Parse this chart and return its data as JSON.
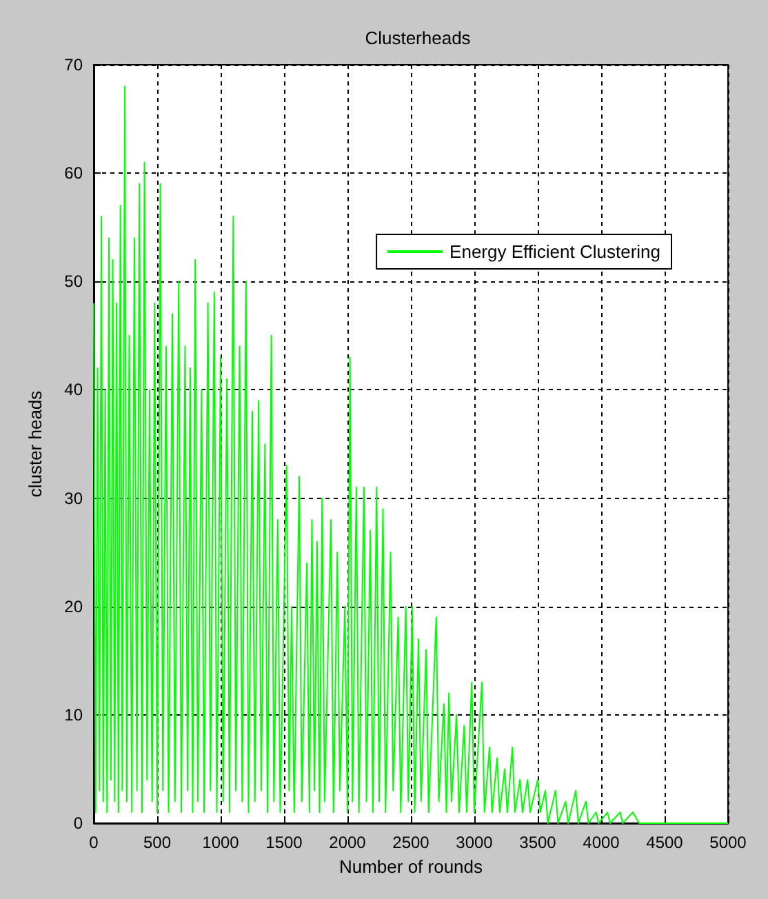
{
  "chart_data": {
    "type": "line",
    "title": "Clusterheads",
    "xlabel": "Number of rounds",
    "ylabel": "cluster heads",
    "xlim": [
      0,
      5000
    ],
    "xticks": [
      0,
      500,
      1000,
      1500,
      2000,
      2500,
      3000,
      3500,
      4000,
      4500,
      5000
    ],
    "ylim": [
      0,
      70
    ],
    "yticks": [
      0,
      10,
      20,
      30,
      40,
      50,
      60,
      70
    ],
    "grid": true,
    "legend": "top right",
    "marker": "none",
    "line_style": "solid",
    "series": [
      {
        "name": "Energy Efficient Clustering",
        "color": "#00ff00",
        "x": [
          0,
          15,
          30,
          45,
          60,
          75,
          90,
          105,
          120,
          135,
          150,
          165,
          180,
          195,
          210,
          225,
          245,
          260,
          280,
          300,
          320,
          340,
          360,
          380,
          400,
          420,
          440,
          460,
          480,
          500,
          525,
          545,
          570,
          590,
          620,
          640,
          670,
          690,
          720,
          740,
          760,
          780,
          800,
          820,
          850,
          870,
          900,
          920,
          950,
          970,
          1000,
          1020,
          1050,
          1070,
          1100,
          1120,
          1150,
          1170,
          1200,
          1220,
          1250,
          1270,
          1300,
          1320,
          1350,
          1370,
          1400,
          1420,
          1450,
          1470,
          1520,
          1540,
          1560,
          1580,
          1620,
          1640,
          1680,
          1700,
          1720,
          1740,
          1760,
          1780,
          1800,
          1820,
          1870,
          1890,
          1920,
          1940,
          1980,
          2000,
          2020,
          2040,
          2070,
          2090,
          2130,
          2150,
          2180,
          2200,
          2230,
          2250,
          2280,
          2300,
          2340,
          2360,
          2400,
          2420,
          2460,
          2480,
          2510,
          2530,
          2560,
          2580,
          2620,
          2640,
          2700,
          2720,
          2760,
          2780,
          2800,
          2820,
          2860,
          2880,
          2920,
          2940,
          2980,
          3000,
          3060,
          3080,
          3120,
          3140,
          3180,
          3200,
          3240,
          3260,
          3300,
          3320,
          3360,
          3380,
          3420,
          3440,
          3500,
          3520,
          3560,
          3580,
          3640,
          3660,
          3720,
          3740,
          3800,
          3820,
          3880,
          3900,
          3960,
          3980,
          4050,
          4070,
          4150,
          4170,
          4250,
          4300,
          5000
        ],
        "values": [
          48,
          1,
          42,
          3,
          56,
          2,
          40,
          1,
          54,
          4,
          52,
          2,
          48,
          1,
          57,
          3,
          68,
          2,
          45,
          1,
          54,
          3,
          59,
          1,
          61,
          4,
          40,
          2,
          48,
          1,
          59,
          3,
          44,
          1,
          47,
          2,
          50,
          1,
          44,
          3,
          42,
          1,
          52,
          2,
          40,
          1,
          48,
          3,
          49,
          1,
          43,
          2,
          41,
          1,
          56,
          3,
          44,
          2,
          50,
          1,
          38,
          2,
          39,
          3,
          35,
          1,
          45,
          2,
          28,
          1,
          33,
          3,
          20,
          1,
          32,
          2,
          24,
          1,
          28,
          3,
          26,
          1,
          30,
          2,
          28,
          1,
          25,
          3,
          20,
          1,
          43,
          2,
          31,
          1,
          31,
          2,
          27,
          1,
          31,
          2,
          29,
          1,
          25,
          3,
          19,
          1,
          20,
          2,
          20,
          1,
          17,
          2,
          16,
          1,
          19,
          2,
          11,
          1,
          12,
          2,
          10,
          1,
          9,
          1,
          13,
          1,
          13,
          1,
          7,
          1,
          6,
          1,
          5,
          1,
          7,
          1,
          4,
          1,
          4,
          1,
          4,
          1,
          3,
          0,
          3,
          0,
          2,
          0,
          3,
          0,
          2,
          0,
          1,
          0,
          1,
          0,
          1,
          0,
          1,
          0,
          0
        ]
      }
    ]
  }
}
